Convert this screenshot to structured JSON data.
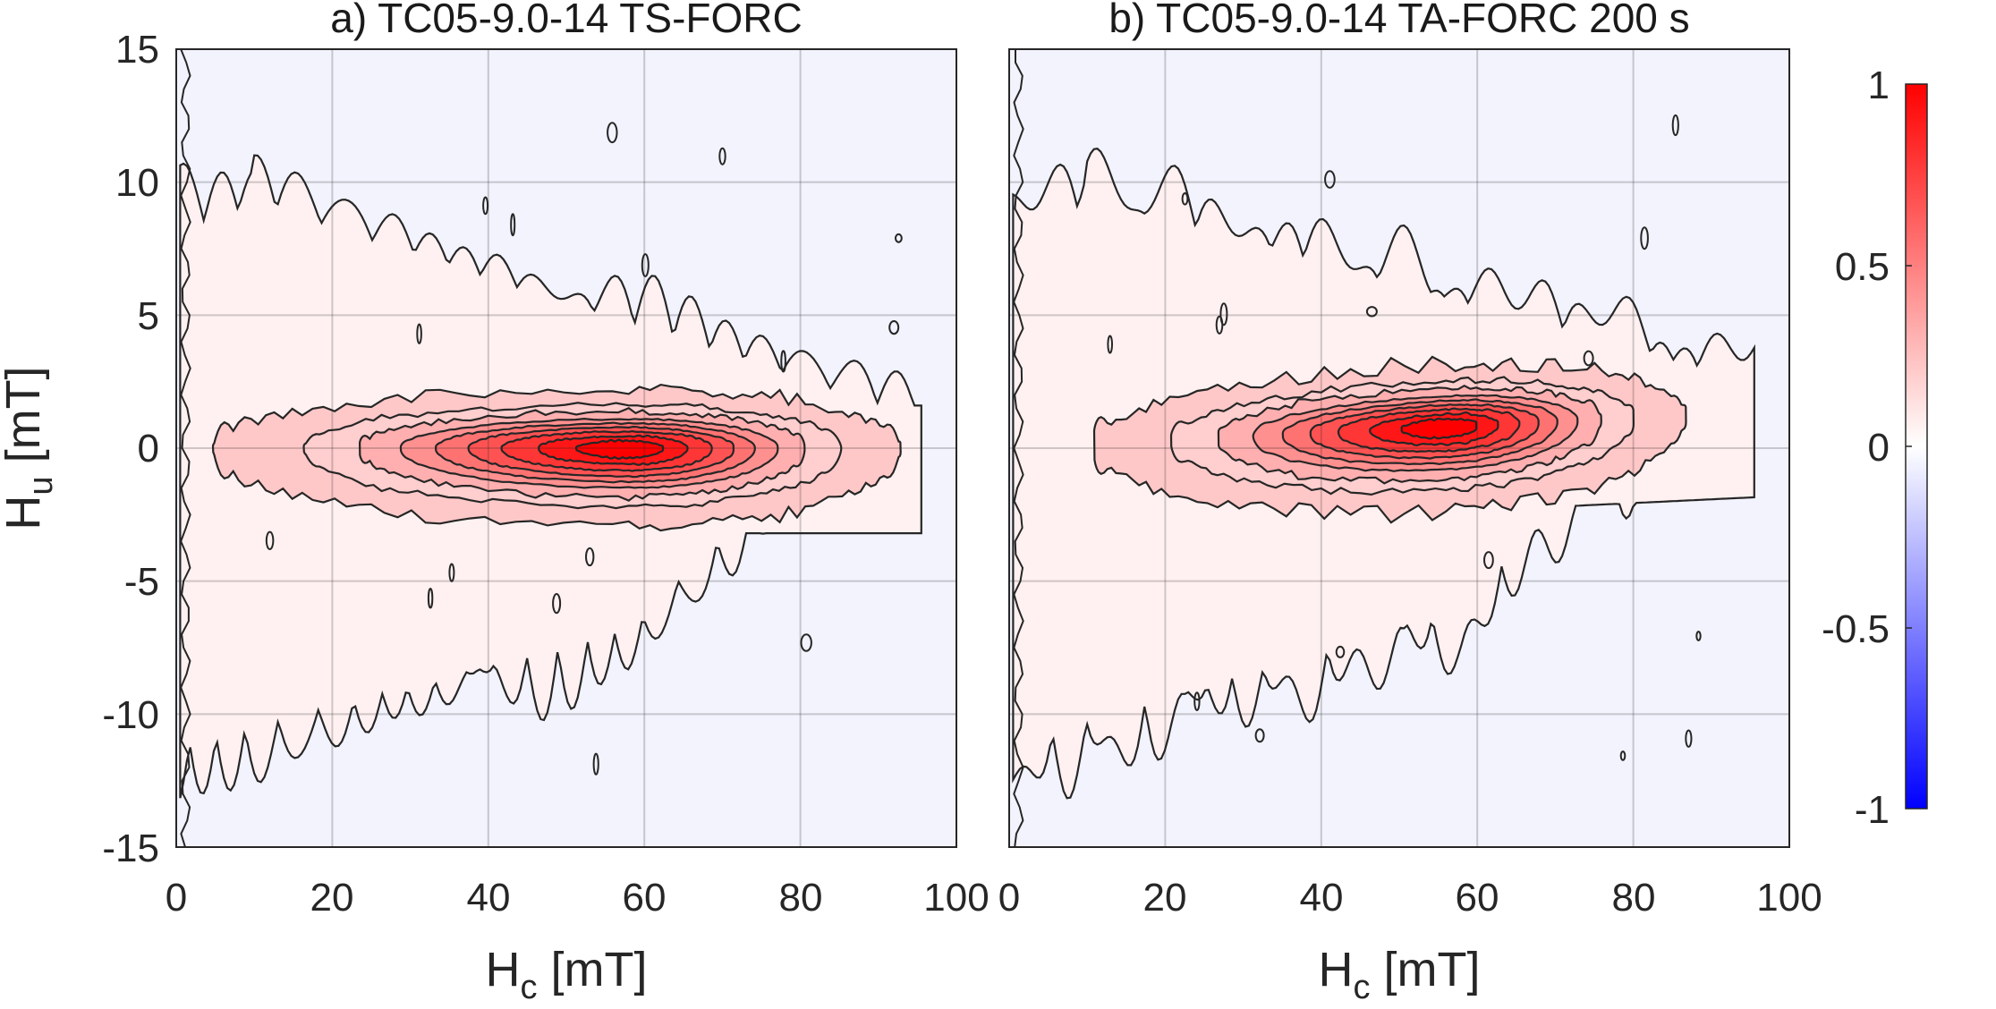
{
  "chart_data": [
    {
      "type": "heatmap",
      "subtype": "forc-diagram",
      "title": "a) TC05-9.0-14 TS-FORC",
      "xlabel": "H_c [mT]",
      "ylabel": "H_u [mT]",
      "xlim": [
        0,
        100
      ],
      "ylim": [
        -15,
        15
      ],
      "xticks": [
        0,
        20,
        40,
        60,
        80,
        100
      ],
      "xtick_labels": [
        "0",
        "20",
        "40",
        "60",
        "80",
        "100"
      ],
      "yticks": [
        15,
        10,
        5,
        0,
        -5,
        -10,
        -15
      ],
      "grid": true,
      "peak": {
        "hc": 58,
        "hu": 0,
        "value": 1.0
      },
      "spread": {
        "hc_left": 26,
        "hc_right": 17,
        "hu_up": 0.95,
        "hu_down": 1.3,
        "tilt": 0
      },
      "contour_levels": [
        0.04,
        0.14,
        0.26,
        0.38,
        0.5,
        0.62,
        0.74,
        0.86,
        0.95
      ]
    },
    {
      "type": "heatmap",
      "subtype": "forc-diagram",
      "title": "b) TC05-9.0-14 TA-FORC 200 s",
      "xlabel": "H_c [mT]",
      "ylabel": "",
      "xlim": [
        0,
        100
      ],
      "ylim": [
        -15,
        15
      ],
      "xticks": [
        0,
        20,
        40,
        60,
        80,
        100
      ],
      "xtick_labels": [
        "0",
        "20",
        "40",
        "60",
        "80",
        "100"
      ],
      "grid": true,
      "peak": {
        "hc": 56,
        "hu": 0.8,
        "value": 1.0
      },
      "spread": {
        "hc_left": 22,
        "hc_right": 15,
        "hu_up": 1.0,
        "hu_down": 1.4,
        "tilt": 0.014
      },
      "contour_levels": [
        0.04,
        0.14,
        0.26,
        0.38,
        0.5,
        0.62,
        0.74,
        0.86,
        0.95
      ]
    }
  ],
  "colorbar": {
    "range": [
      -1,
      1
    ],
    "ticks": [
      1,
      0.5,
      0,
      -0.5,
      -1
    ],
    "colors": {
      "min": "#0000ff",
      "mid": "#ffffff",
      "max": "#ff0000"
    }
  },
  "labels": {
    "panel_a_title": "a) TC05-9.0-14 TS-FORC",
    "panel_b_title": "b) TC05-9.0-14 TA-FORC 200 s",
    "hc_main": "H",
    "hc_sub": "c",
    "hc_unit": " [mT]",
    "hu_main": "H",
    "hu_sub": "u",
    "hu_unit": " [mT]",
    "a_xt_0": "0",
    "a_xt_20": "20",
    "a_xt_40": "40",
    "a_xt_60": "60",
    "a_xt_80": "80",
    "a_xt_100": "100",
    "b_xt_0": "0",
    "b_xt_20": "20",
    "b_xt_40": "40",
    "b_xt_60": "60",
    "b_xt_80": "80",
    "b_xt_100": "100",
    "yt_15": "15",
    "yt_10": "10",
    "yt_5": "5",
    "yt_0": "0",
    "yt_m5": "-5",
    "yt_m10": "-10",
    "yt_m15": "-15",
    "cb_1": "1",
    "cb_05": "0.5",
    "cb_0": "0",
    "cb_m05": "-0.5",
    "cb_m1": "-1"
  }
}
